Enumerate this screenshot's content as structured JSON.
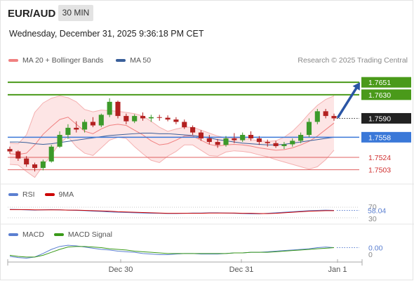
{
  "header": {
    "symbol": "EUR/AUD",
    "timeframe": "30 MIN",
    "datetime": "Wednesday, December 31, 2025 9:36:18 PM CET",
    "credit": "Research © 2025 Trading Central"
  },
  "main_legend": {
    "bollinger": {
      "label": "MA 20 + Bollinger Bands",
      "color": "#f08080"
    },
    "ma50": {
      "label": "MA 50",
      "color": "#3a5f9a"
    }
  },
  "rsi_legend": {
    "rsi": {
      "label": "RSI",
      "color": "#5b7fd1"
    },
    "ma9": {
      "label": "9MA",
      "color": "#cc0000"
    }
  },
  "macd_legend": {
    "macd": {
      "label": "MACD",
      "color": "#5b7fd1"
    },
    "signal": {
      "label": "MACD Signal",
      "color": "#3a9a1a"
    }
  },
  "chart_data": [
    {
      "type": "candlestick",
      "title": "EUR/AUD 30 MIN",
      "ylim": [
        1.7493,
        1.7675
      ],
      "x_ticks": [
        "Dec 30",
        "Dec 31",
        "Jan 1"
      ],
      "current_price": {
        "label": "1.7590",
        "value": 1.759
      },
      "levels": [
        {
          "label": "1.7651",
          "value": 1.7651,
          "kind": "resistance",
          "color": "#4a9a1a"
        },
        {
          "label": "1.7630",
          "value": 1.763,
          "kind": "resistance",
          "color": "#4a9a1a"
        },
        {
          "label": "1.7558",
          "value": 1.7558,
          "kind": "pivot",
          "color": "#3a78d8"
        },
        {
          "label": "1.7524",
          "value": 1.7524,
          "kind": "support",
          "color": "#e06060"
        },
        {
          "label": "1.7503",
          "value": 1.7503,
          "kind": "support",
          "color": "#e06060"
        }
      ],
      "target": 1.7651,
      "ma20": [
        1.753,
        1.7529,
        1.7531,
        1.7545,
        1.7563,
        1.7576,
        1.7588,
        1.7592,
        1.758,
        1.7568,
        1.7564,
        1.7572,
        1.7578,
        1.758,
        1.7578,
        1.757,
        1.7562,
        1.7552,
        1.7545,
        1.7547,
        1.7553,
        1.756,
        1.756,
        1.7553,
        1.7546,
        1.7543,
        1.7545,
        1.7546,
        1.7545,
        1.7543,
        1.754,
        1.7538,
        1.7536,
        1.7537,
        1.754,
        1.7545,
        1.7551,
        1.756,
        1.7571,
        1.7582
      ],
      "bb_upper": [
        1.7548,
        1.7547,
        1.7562,
        1.76,
        1.7616,
        1.7624,
        1.7628,
        1.7625,
        1.7618,
        1.7605,
        1.7601,
        1.7604,
        1.7603,
        1.7602,
        1.76,
        1.7598,
        1.7594,
        1.7585,
        1.7575,
        1.7568,
        1.7572,
        1.7575,
        1.7575,
        1.757,
        1.7565,
        1.756,
        1.7557,
        1.7557,
        1.7556,
        1.7554,
        1.7552,
        1.7551,
        1.7552,
        1.7558,
        1.7568,
        1.7582,
        1.7598,
        1.7612,
        1.7622,
        1.7628
      ],
      "bb_lower": [
        1.7512,
        1.7511,
        1.75,
        1.749,
        1.751,
        1.7528,
        1.7548,
        1.7559,
        1.7542,
        1.7531,
        1.7527,
        1.754,
        1.7553,
        1.7558,
        1.7556,
        1.7542,
        1.753,
        1.7519,
        1.7515,
        1.7526,
        1.7534,
        1.7545,
        1.7545,
        1.7536,
        1.7527,
        1.7526,
        1.7533,
        1.7535,
        1.7534,
        1.7532,
        1.7528,
        1.7525,
        1.752,
        1.7516,
        1.7512,
        1.7508,
        1.7504,
        1.7508,
        1.752,
        1.7536
      ],
      "ma50": [
        1.755,
        1.755,
        1.7549,
        1.7547,
        1.7546,
        1.7547,
        1.7549,
        1.7551,
        1.7553,
        1.7555,
        1.7557,
        1.7559,
        1.7561,
        1.7562,
        1.7563,
        1.7564,
        1.7565,
        1.7565,
        1.7564,
        1.7564,
        1.7563,
        1.7562,
        1.7561,
        1.7559,
        1.7557,
        1.7554,
        1.7552,
        1.755,
        1.7548,
        1.7547,
        1.7546,
        1.7545,
        1.7545,
        1.7546,
        1.7548,
        1.755,
        1.7552,
        1.7554,
        1.7556,
        1.7558
      ],
      "candles": [
        [
          1.7538,
          1.7542,
          1.753,
          1.7534
        ],
        [
          1.7534,
          1.7536,
          1.7518,
          1.7522
        ],
        [
          1.7522,
          1.7526,
          1.7508,
          1.7512
        ],
        [
          1.7512,
          1.7515,
          1.75,
          1.7506
        ],
        [
          1.7506,
          1.752,
          1.7502,
          1.7517
        ],
        [
          1.7517,
          1.7545,
          1.7515,
          1.7542
        ],
        [
          1.7542,
          1.7568,
          1.754,
          1.7562
        ],
        [
          1.7562,
          1.758,
          1.7555,
          1.7574
        ],
        [
          1.7574,
          1.7585,
          1.7566,
          1.7571
        ],
        [
          1.7571,
          1.7588,
          1.7566,
          1.7584
        ],
        [
          1.7584,
          1.7592,
          1.7575,
          1.7578
        ],
        [
          1.7578,
          1.7598,
          1.7575,
          1.7596
        ],
        [
          1.7596,
          1.7624,
          1.7592,
          1.7618
        ],
        [
          1.7618,
          1.762,
          1.759,
          1.7594
        ],
        [
          1.7594,
          1.7598,
          1.758,
          1.7585
        ],
        [
          1.7585,
          1.7597,
          1.7582,
          1.7594
        ],
        [
          1.7594,
          1.76,
          1.7586,
          1.759
        ],
        [
          1.759,
          1.7596,
          1.7584,
          1.7592
        ],
        [
          1.7592,
          1.7596,
          1.7586,
          1.7591
        ],
        [
          1.7591,
          1.7595,
          1.7585,
          1.7588
        ],
        [
          1.7588,
          1.7592,
          1.758,
          1.7584
        ],
        [
          1.7584,
          1.7588,
          1.7572,
          1.7575
        ],
        [
          1.7575,
          1.7578,
          1.7562,
          1.7566
        ],
        [
          1.7566,
          1.757,
          1.7552,
          1.7556
        ],
        [
          1.7556,
          1.7562,
          1.7546,
          1.755
        ],
        [
          1.755,
          1.7555,
          1.754,
          1.7545
        ],
        [
          1.7545,
          1.756,
          1.7542,
          1.7556
        ],
        [
          1.7556,
          1.7565,
          1.7548,
          1.7553
        ],
        [
          1.7553,
          1.7566,
          1.755,
          1.7562
        ],
        [
          1.7562,
          1.7568,
          1.7552,
          1.7556
        ],
        [
          1.7556,
          1.756,
          1.7545,
          1.755
        ],
        [
          1.755,
          1.7554,
          1.7542,
          1.7548
        ],
        [
          1.7548,
          1.7552,
          1.754,
          1.7543
        ],
        [
          1.7543,
          1.755,
          1.7538,
          1.7546
        ],
        [
          1.7546,
          1.7556,
          1.7542,
          1.7552
        ],
        [
          1.7552,
          1.7566,
          1.7548,
          1.7562
        ],
        [
          1.7562,
          1.759,
          1.7558,
          1.7584
        ],
        [
          1.7584,
          1.7606,
          1.758,
          1.7602
        ],
        [
          1.7602,
          1.7606,
          1.759,
          1.7594
        ],
        [
          1.7594,
          1.7598,
          1.7586,
          1.759
        ]
      ]
    },
    {
      "type": "line",
      "title": "RSI",
      "ylim": [
        30,
        70
      ],
      "y_ticks": [
        "70",
        "30"
      ],
      "current": {
        "label": "58.04",
        "value": 58.04
      },
      "series": [
        {
          "name": "RSI",
          "values": [
            62,
            61,
            60,
            59,
            60,
            61,
            60,
            59,
            58,
            57,
            55,
            54,
            52,
            51,
            50,
            49,
            48,
            47,
            47,
            46,
            46,
            47,
            48,
            48,
            49,
            49,
            48,
            47,
            46,
            45,
            45,
            47,
            49,
            51,
            53,
            55,
            57,
            58,
            59,
            58
          ]
        },
        {
          "name": "9MA",
          "values": [
            61,
            61,
            61,
            60,
            60,
            60,
            60,
            59,
            59,
            58,
            57,
            56,
            55,
            53,
            52,
            51,
            50,
            49,
            48,
            47,
            47,
            47,
            47,
            47,
            48,
            48,
            48,
            48,
            47,
            47,
            46,
            46,
            47,
            49,
            51,
            53,
            55,
            56,
            57,
            57
          ]
        }
      ]
    },
    {
      "type": "line",
      "title": "MACD",
      "ylim": [
        -0.0012,
        0.0018
      ],
      "y_ticks": [
        "0"
      ],
      "current": {
        "label": "0.00",
        "value": 0.0
      },
      "series": [
        {
          "name": "MACD",
          "values": [
            -0.0006,
            -0.0008,
            -0.0009,
            -0.0007,
            -0.0001,
            0.0006,
            0.0011,
            0.0013,
            0.0012,
            0.001,
            0.0008,
            0.0006,
            0.0005,
            0.0003,
            0.0002,
            0.0001,
            -0.0001,
            -0.0002,
            -0.0003,
            -0.0003,
            -0.0002,
            -0.0001,
            -0.0001,
            -0.0002,
            -0.0002,
            -0.0002,
            -0.0001,
            0.0,
            0.0,
            0.0001,
            0.0001,
            0.0002,
            0.0003,
            0.0004,
            0.0005,
            0.0006,
            0.0007,
            0.0009,
            0.001,
            0.0009
          ]
        },
        {
          "name": "MACD Signal",
          "values": [
            -0.0004,
            -0.0006,
            -0.0007,
            -0.0007,
            -0.0004,
            0.0001,
            0.0006,
            0.001,
            0.0011,
            0.0011,
            0.001,
            0.0009,
            0.0007,
            0.0006,
            0.0005,
            0.0003,
            0.0002,
            0.0001,
            0.0,
            -0.0001,
            -0.0001,
            -0.0001,
            -0.0001,
            -0.0001,
            -0.0001,
            -0.0001,
            -0.0001,
            0.0,
            0.0,
            0.0001,
            0.0001,
            0.0001,
            0.0002,
            0.0003,
            0.0004,
            0.0005,
            0.0006,
            0.0007,
            0.0008,
            0.0009
          ]
        }
      ]
    }
  ]
}
